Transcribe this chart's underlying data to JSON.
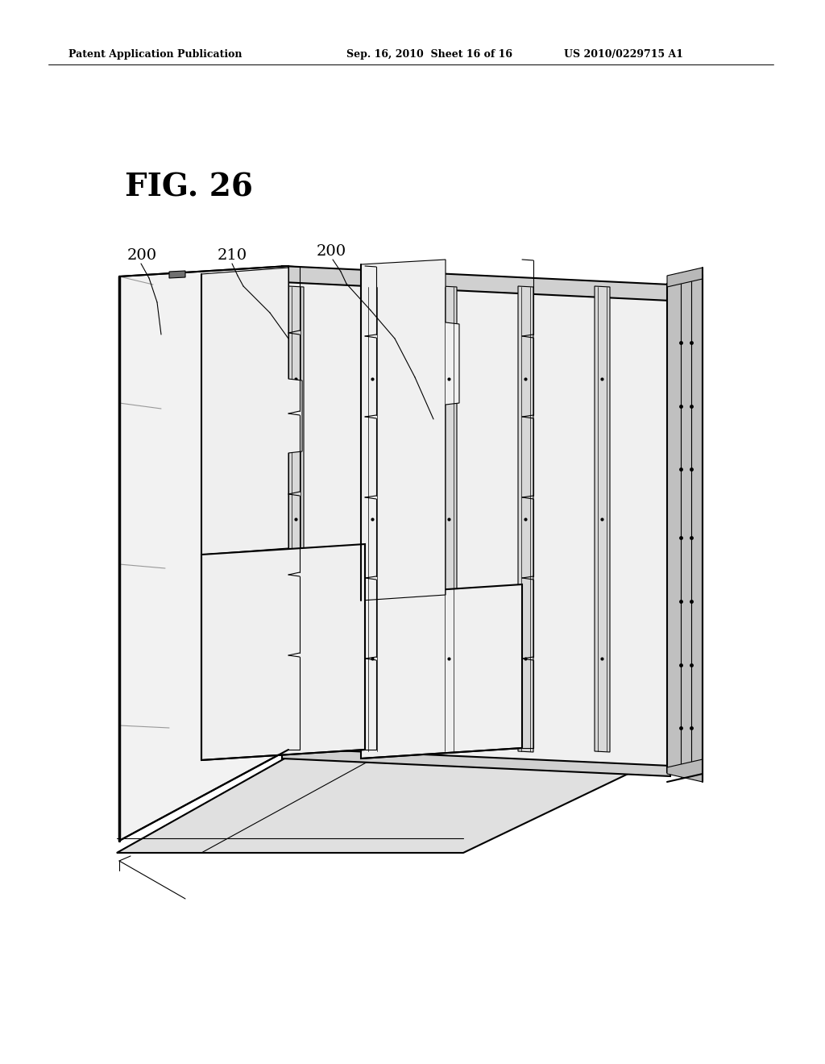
{
  "bg_color": "#ffffff",
  "header_left": "Patent Application Publication",
  "header_mid": "Sep. 16, 2010  Sheet 16 of 16",
  "header_right": "US 2010/0229715 A1",
  "fig_label": "FIG. 26",
  "lw_main": 1.5,
  "lw_thin": 0.8,
  "lw_thick": 2.5
}
